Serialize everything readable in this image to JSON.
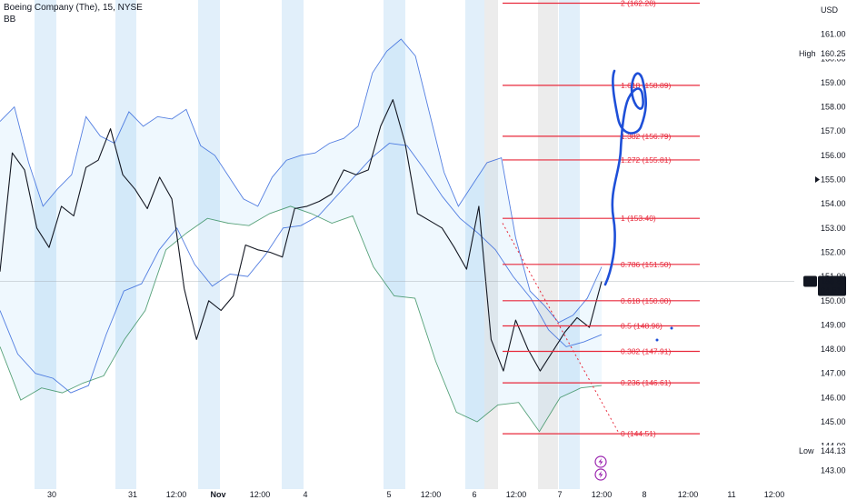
{
  "header": {
    "title": "Boeing Company (The), 15, NYSE",
    "indicator": "BB"
  },
  "price_axis": {
    "currency": "USD",
    "high_label": "High",
    "high_value": "160.25",
    "low_label": "Low",
    "low_value": "144.13",
    "symbol": "BA",
    "last_price": "150.80",
    "countdown": "04:51"
  },
  "colors": {
    "price": "#131722",
    "bb_upper_lower": "#2a5fd9",
    "bb_basis": "#2e8b57",
    "bb_fill": "#2196f3",
    "fib_line": "#e8293b",
    "fib_text": "#e8293b",
    "trend": "#e8293b",
    "drawing": "#1e4fd8",
    "session_band": "#e1effa",
    "weekend_band": "#ececec"
  },
  "icons": [
    "bolt-icon",
    "bolt-icon"
  ],
  "chart_data": {
    "type": "line",
    "title": "Boeing Company (The), 15, NYSE",
    "y_unit": "USD",
    "ylim": [
      142.6,
      162.3
    ],
    "y_ticks": [
      143.0,
      144.0,
      145.0,
      146.0,
      147.0,
      148.0,
      149.0,
      150.0,
      151.0,
      152.0,
      153.0,
      154.0,
      155.0,
      156.0,
      157.0,
      158.0,
      159.0,
      160.0,
      161.0
    ],
    "x_labels": [
      "30",
      "31",
      "12:00",
      "Nov",
      "12:00",
      "4",
      "5",
      "12:00",
      "6",
      "12:00",
      "7",
      "12:00",
      "8",
      "12:00",
      "11",
      "12:00"
    ],
    "grid": false,
    "series": [
      {
        "name": "BA",
        "values": [
          151.2,
          156.1,
          155.4,
          153.0,
          152.2,
          153.9,
          153.5,
          155.5,
          155.8,
          157.1,
          155.2,
          154.6,
          153.8,
          155.1,
          154.2,
          150.5,
          148.4,
          150.0,
          149.6,
          150.2,
          152.3,
          152.1,
          152.0,
          151.8,
          153.8,
          153.9,
          154.1,
          154.4,
          155.4,
          155.2,
          155.4,
          157.2,
          158.3,
          156.5,
          153.6,
          153.3,
          153.0,
          152.2,
          151.3,
          153.9,
          148.4,
          147.1,
          149.2,
          148.0,
          147.1,
          147.9,
          148.7,
          149.3,
          148.9,
          150.8
        ]
      },
      {
        "name": "BB",
        "values": [
          157.4,
          158.0,
          155.7,
          153.9,
          154.6,
          155.2,
          157.6,
          156.8,
          156.5,
          157.8,
          157.2,
          157.6,
          157.5,
          157.9,
          156.4,
          156.0,
          155.1,
          154.2,
          153.9,
          155.1,
          155.8,
          156.0,
          156.1,
          156.5,
          156.7,
          157.2,
          159.4,
          160.3,
          160.8,
          160.1,
          157.7,
          155.3,
          153.9,
          154.8,
          155.7,
          155.9,
          152.6,
          150.4,
          149.8,
          149.1,
          149.4,
          150.1,
          151.4
        ]
      },
      {
        "name": "BB",
        "values": [
          149.6,
          147.8,
          147.0,
          146.8,
          146.2,
          146.5,
          148.6,
          150.4,
          150.7,
          152.1,
          153.0,
          151.5,
          150.6,
          151.1,
          151.0,
          151.9,
          153.0,
          153.1,
          153.5,
          154.3,
          155.1,
          155.9,
          156.5,
          156.4,
          155.4,
          154.3,
          153.4,
          152.8,
          152.1,
          151.0,
          150.1,
          148.8,
          148.1,
          148.3,
          148.6
        ]
      },
      {
        "name": "BB",
        "values": [
          148.1,
          145.9,
          146.4,
          146.2,
          146.6,
          146.9,
          148.4,
          149.6,
          152.1,
          152.8,
          153.4,
          153.2,
          153.1,
          153.6,
          153.9,
          153.6,
          153.2,
          153.5,
          151.4,
          150.2,
          150.1,
          147.5,
          145.4,
          145.0,
          145.7,
          145.8,
          144.6,
          146.0,
          146.4,
          146.5
        ]
      }
    ],
    "fibonacci": [
      {
        "ratio": "0",
        "price": 144.51,
        "label": "0 (144.51)"
      },
      {
        "ratio": "0.236",
        "price": 146.61,
        "label": "0.236 (146.61)"
      },
      {
        "ratio": "0.382",
        "price": 147.91,
        "label": "0.382 (147.91)"
      },
      {
        "ratio": "0.5",
        "price": 148.96,
        "label": "0.5 (148.96)"
      },
      {
        "ratio": "0.618",
        "price": 150.0,
        "label": "0.618 (150.00)"
      },
      {
        "ratio": "0.786",
        "price": 151.5,
        "label": "0.786 (151.50)"
      },
      {
        "ratio": "1",
        "price": 153.4,
        "label": "1 (153.40)"
      },
      {
        "ratio": "1.272",
        "price": 155.81,
        "label": "1.272 (155.81)"
      },
      {
        "ratio": "1.382",
        "price": 156.79,
        "label": "1.382 (156.79)"
      },
      {
        "ratio": "1.618",
        "price": 158.89,
        "label": "1.618 (158.89)"
      },
      {
        "ratio": "2",
        "price": 162.28,
        "label": "2 (162.28)"
      }
    ],
    "trendline": {
      "from": 153.2,
      "to": 144.6
    },
    "last_price": 150.8
  }
}
